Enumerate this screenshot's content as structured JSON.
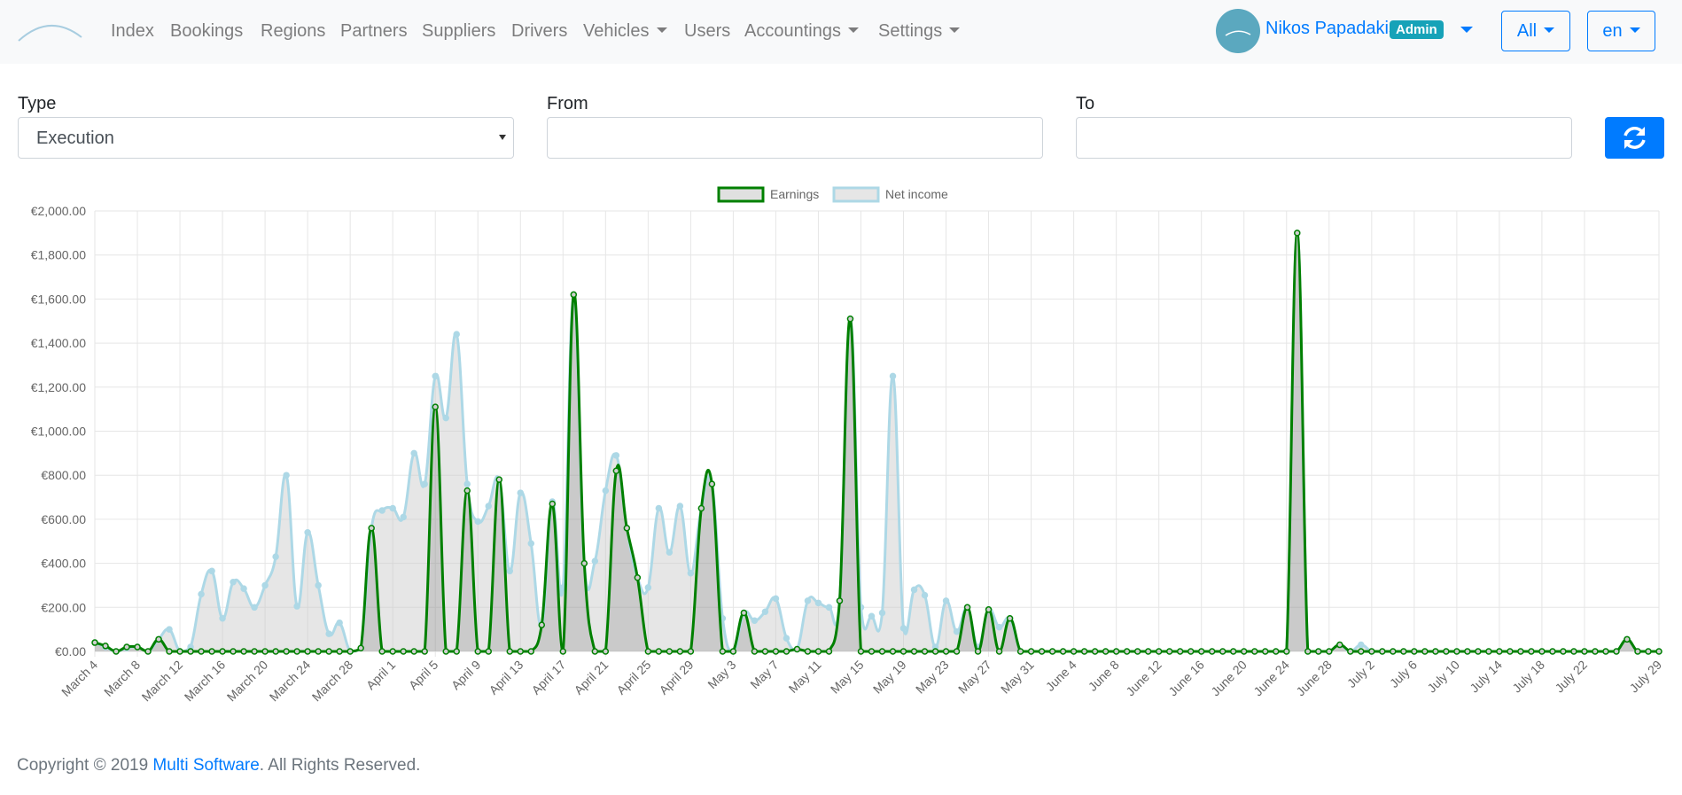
{
  "nav": {
    "items": [
      "Index",
      "Bookings",
      "Regions",
      "Partners",
      "Suppliers",
      "Drivers",
      "Vehicles",
      "Users",
      "Accountings",
      "Settings"
    ],
    "user": "Nikos Papadakis",
    "badge": "Admin",
    "scope": "All",
    "lang": "en"
  },
  "form": {
    "type_label": "Type",
    "type_value": "Execution",
    "from_label": "From",
    "to_label": "To"
  },
  "footer": {
    "prefix": "Copyright © 2019",
    "link": "Multi Software",
    "suffix": ". All Rights Reserved."
  },
  "chart_data": {
    "type": "line",
    "categories": [
      "March 4",
      null,
      null,
      null,
      "March 8",
      null,
      null,
      null,
      "March 12",
      null,
      null,
      null,
      "March 16",
      null,
      null,
      null,
      "March 20",
      null,
      null,
      null,
      "March 24",
      null,
      null,
      null,
      "March 28",
      null,
      null,
      null,
      "April 1",
      null,
      null,
      null,
      "April 5",
      null,
      null,
      null,
      "April 9",
      null,
      null,
      null,
      "April 13",
      null,
      null,
      null,
      "April 17",
      null,
      null,
      null,
      "April 21",
      null,
      null,
      null,
      "April 25",
      null,
      null,
      null,
      "April 29",
      null,
      null,
      null,
      "May 3",
      null,
      null,
      null,
      "May 7",
      null,
      null,
      null,
      "May 11",
      null,
      null,
      null,
      "May 15",
      null,
      null,
      null,
      "May 19",
      null,
      null,
      null,
      "May 23",
      null,
      null,
      null,
      "May 27",
      null,
      null,
      null,
      "May 31",
      null,
      null,
      null,
      "June 4",
      null,
      null,
      null,
      "June 8",
      null,
      null,
      null,
      "June 12",
      null,
      null,
      null,
      "June 16",
      null,
      null,
      null,
      "June 20",
      null,
      null,
      null,
      "June 24",
      null,
      null,
      null,
      "June 28",
      null,
      null,
      null,
      "July 2",
      null,
      null,
      null,
      "July 6",
      null,
      null,
      null,
      "July 10",
      null,
      null,
      null,
      "July 14",
      null,
      null,
      null,
      "July 18",
      null,
      null,
      null,
      "July 22",
      null,
      null,
      null,
      null,
      null,
      null,
      "July 29"
    ],
    "series": [
      {
        "name": "Earnings",
        "color": "#008000",
        "fill": "rgba(0,0,0,0.12)",
        "values": [
          40,
          25,
          0,
          20,
          20,
          0,
          55,
          0,
          0,
          0,
          0,
          0,
          0,
          0,
          0,
          0,
          0,
          0,
          0,
          0,
          0,
          0,
          0,
          0,
          0,
          15,
          560,
          0,
          0,
          0,
          0,
          0,
          1110,
          0,
          0,
          730,
          0,
          0,
          780,
          0,
          0,
          0,
          120,
          670,
          0,
          1620,
          400,
          0,
          0,
          820,
          560,
          335,
          0,
          0,
          0,
          0,
          0,
          650,
          760,
          0,
          0,
          175,
          0,
          0,
          0,
          0,
          10,
          0,
          0,
          0,
          230,
          1510,
          0,
          0,
          0,
          0,
          0,
          0,
          0,
          0,
          0,
          0,
          200,
          0,
          190,
          0,
          150,
          0,
          0,
          0,
          0,
          0,
          0,
          0,
          0,
          0,
          0,
          0,
          0,
          0,
          0,
          0,
          0,
          0,
          0,
          0,
          0,
          0,
          0,
          0,
          0,
          0,
          0,
          1900,
          0,
          0,
          0,
          30,
          0,
          0,
          0,
          0,
          0,
          0,
          0,
          0,
          0,
          0,
          0,
          0,
          0,
          0,
          0,
          0,
          0,
          0,
          0,
          0,
          0,
          0,
          0,
          0,
          0,
          0,
          55,
          0,
          0,
          0
        ]
      },
      {
        "name": "Net income",
        "color": "#add8e6",
        "fill": "rgba(200,200,200,0.45)",
        "values": [
          40,
          20,
          0,
          15,
          20,
          0,
          55,
          100,
          0,
          20,
          260,
          365,
          150,
          315,
          285,
          200,
          300,
          430,
          800,
          205,
          540,
          300,
          80,
          130,
          0,
          15,
          560,
          640,
          650,
          610,
          900,
          760,
          1250,
          1060,
          1440,
          760,
          590,
          660,
          780,
          365,
          720,
          490,
          120,
          680,
          290,
          1620,
          400,
          410,
          730,
          890,
          560,
          335,
          290,
          650,
          450,
          660,
          355,
          650,
          760,
          150,
          0,
          175,
          140,
          180,
          240,
          60,
          10,
          230,
          220,
          200,
          230,
          1510,
          200,
          160,
          175,
          1250,
          105,
          280,
          255,
          20,
          230,
          90,
          200,
          20,
          190,
          110,
          150,
          0,
          0,
          0,
          0,
          0,
          0,
          0,
          0,
          0,
          0,
          0,
          0,
          0,
          0,
          0,
          0,
          0,
          0,
          0,
          0,
          0,
          0,
          0,
          0,
          0,
          0,
          1900,
          0,
          0,
          0,
          30,
          0,
          30,
          0,
          0,
          0,
          0,
          0,
          0,
          0,
          0,
          0,
          0,
          0,
          0,
          0,
          0,
          0,
          0,
          0,
          0,
          0,
          0,
          0,
          0,
          0,
          0,
          55,
          0,
          0,
          0
        ]
      }
    ],
    "ylim": [
      0,
      2000
    ],
    "yticks": [
      {
        "value": 0,
        "label": "€0.00"
      },
      {
        "value": 200,
        "label": "€200.00"
      },
      {
        "value": 400,
        "label": "€400.00"
      },
      {
        "value": 600,
        "label": "€600.00"
      },
      {
        "value": 800,
        "label": "€800.00"
      },
      {
        "value": 1000,
        "label": "€1,000.00"
      },
      {
        "value": 1200,
        "label": "€1,200.00"
      },
      {
        "value": 1400,
        "label": "€1,400.00"
      },
      {
        "value": 1600,
        "label": "€1,600.00"
      },
      {
        "value": 1800,
        "label": "€1,800.00"
      },
      {
        "value": 2000,
        "label": "€2,000.00"
      }
    ],
    "grid": true,
    "legend": "top"
  }
}
